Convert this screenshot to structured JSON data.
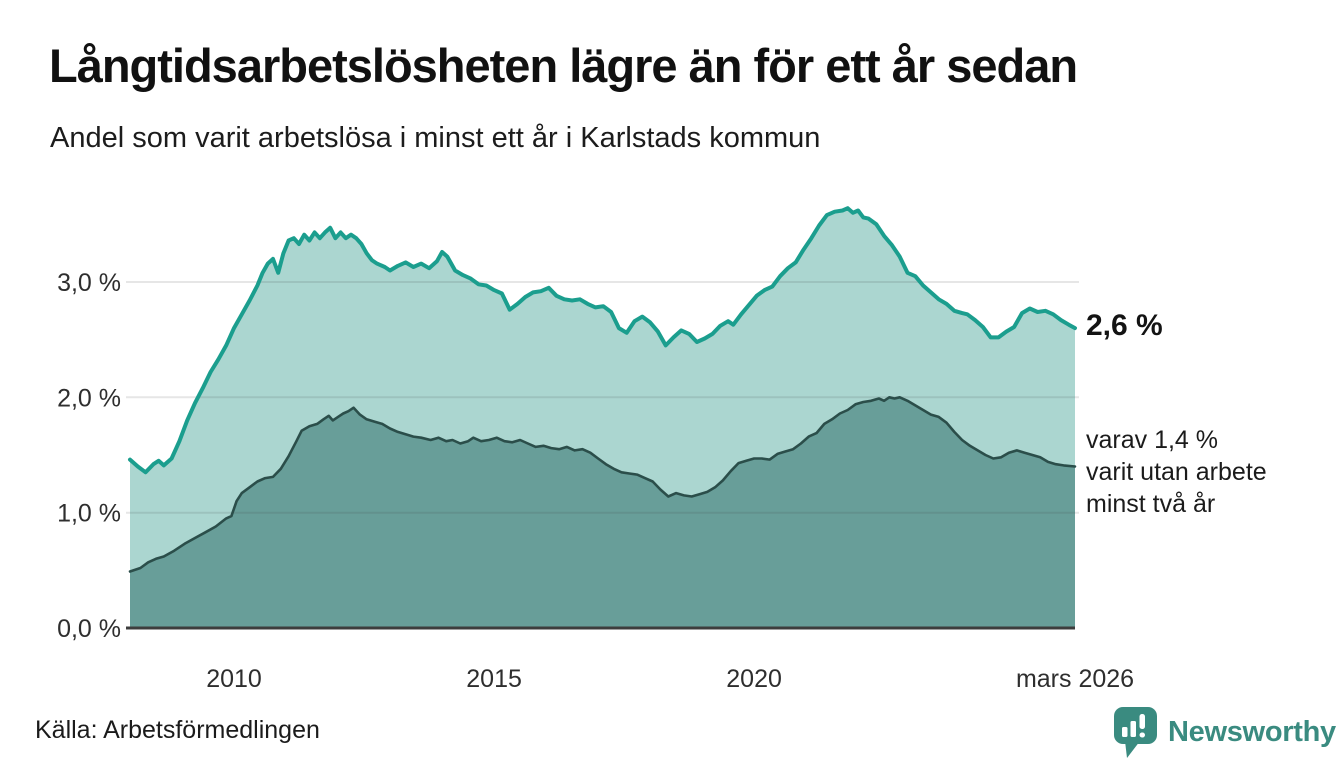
{
  "header": {
    "title": "Långtidsarbetslösheten lägre än för ett år sedan",
    "subtitle": "Andel som varit arbetslösa i minst ett år i Karlstads kommun"
  },
  "annotations": {
    "latest_total": "2,6 %",
    "secondary_lines": [
      "varav 1,4 %",
      "varit utan arbete",
      "minst två år"
    ]
  },
  "footer": {
    "source": "Källa: Arbetsförmedlingen",
    "logo_text": "Newsworthy"
  },
  "colors": {
    "line_total": "#1b9e8e",
    "fill_total": "#abd6d0",
    "line_two_years": "#2b4e4a",
    "fill_two_years": "#689e99",
    "gridline": "rgba(60,60,60,0.13)",
    "axis_line": "#3d3d3d",
    "brand_teal": "#3a8b80"
  },
  "chart_data": {
    "type": "area",
    "title": "Långtidsarbetslösheten lägre än för ett år sedan",
    "subtitle": "Andel som varit arbetslösa i minst ett år i Karlstads kommun",
    "xlabel": "",
    "ylabel": "",
    "xlim": [
      2008.0,
      2026.17
    ],
    "ylim": [
      0,
      3.8
    ],
    "grid": "horizontal",
    "legend_position": "none",
    "x_ticks": [
      {
        "v": 2010,
        "label": "2010"
      },
      {
        "v": 2015,
        "label": "2015"
      },
      {
        "v": 2020,
        "label": "2020"
      },
      {
        "v": 2026.17,
        "label": "mars 2026"
      }
    ],
    "y_ticks": [
      {
        "v": 0,
        "label": "0,0 %"
      },
      {
        "v": 1,
        "label": "1,0 %"
      },
      {
        "v": 2,
        "label": "2,0 %"
      },
      {
        "v": 3,
        "label": "3,0 %"
      }
    ],
    "series": [
      {
        "id": "minst-ett-ar",
        "name": "Andel arbetslösa minst ett år",
        "end_label": "2,6 %",
        "color": "#1b9e8e",
        "fill": "#abd6d0",
        "stroke_width": 4,
        "points": [
          [
            2008.0,
            1.46
          ],
          [
            2008.15,
            1.4
          ],
          [
            2008.3,
            1.35
          ],
          [
            2008.45,
            1.42
          ],
          [
            2008.55,
            1.45
          ],
          [
            2008.65,
            1.41
          ],
          [
            2008.8,
            1.47
          ],
          [
            2008.95,
            1.62
          ],
          [
            2009.1,
            1.8
          ],
          [
            2009.25,
            1.95
          ],
          [
            2009.4,
            2.08
          ],
          [
            2009.55,
            2.22
          ],
          [
            2009.7,
            2.33
          ],
          [
            2009.85,
            2.45
          ],
          [
            2010.0,
            2.6
          ],
          [
            2010.15,
            2.72
          ],
          [
            2010.3,
            2.84
          ],
          [
            2010.45,
            2.97
          ],
          [
            2010.55,
            3.08
          ],
          [
            2010.65,
            3.16
          ],
          [
            2010.75,
            3.2
          ],
          [
            2010.85,
            3.08
          ],
          [
            2010.95,
            3.25
          ],
          [
            2011.05,
            3.36
          ],
          [
            2011.15,
            3.38
          ],
          [
            2011.25,
            3.33
          ],
          [
            2011.35,
            3.41
          ],
          [
            2011.45,
            3.36
          ],
          [
            2011.55,
            3.43
          ],
          [
            2011.65,
            3.38
          ],
          [
            2011.75,
            3.43
          ],
          [
            2011.85,
            3.47
          ],
          [
            2011.95,
            3.38
          ],
          [
            2012.05,
            3.43
          ],
          [
            2012.15,
            3.38
          ],
          [
            2012.25,
            3.41
          ],
          [
            2012.35,
            3.38
          ],
          [
            2012.45,
            3.33
          ],
          [
            2012.55,
            3.25
          ],
          [
            2012.65,
            3.19
          ],
          [
            2012.75,
            3.16
          ],
          [
            2012.9,
            3.13
          ],
          [
            2013.0,
            3.1
          ],
          [
            2013.15,
            3.14
          ],
          [
            2013.3,
            3.17
          ],
          [
            2013.45,
            3.13
          ],
          [
            2013.6,
            3.16
          ],
          [
            2013.75,
            3.12
          ],
          [
            2013.9,
            3.18
          ],
          [
            2014.0,
            3.26
          ],
          [
            2014.1,
            3.22
          ],
          [
            2014.25,
            3.1
          ],
          [
            2014.4,
            3.06
          ],
          [
            2014.55,
            3.03
          ],
          [
            2014.7,
            2.98
          ],
          [
            2014.85,
            2.97
          ],
          [
            2015.0,
            2.93
          ],
          [
            2015.15,
            2.9
          ],
          [
            2015.3,
            2.76
          ],
          [
            2015.45,
            2.81
          ],
          [
            2015.6,
            2.87
          ],
          [
            2015.75,
            2.91
          ],
          [
            2015.9,
            2.92
          ],
          [
            2016.05,
            2.95
          ],
          [
            2016.2,
            2.88
          ],
          [
            2016.35,
            2.85
          ],
          [
            2016.5,
            2.84
          ],
          [
            2016.65,
            2.85
          ],
          [
            2016.8,
            2.81
          ],
          [
            2016.95,
            2.78
          ],
          [
            2017.1,
            2.79
          ],
          [
            2017.25,
            2.74
          ],
          [
            2017.4,
            2.6
          ],
          [
            2017.55,
            2.56
          ],
          [
            2017.7,
            2.66
          ],
          [
            2017.85,
            2.7
          ],
          [
            2018.0,
            2.65
          ],
          [
            2018.15,
            2.57
          ],
          [
            2018.3,
            2.45
          ],
          [
            2018.45,
            2.52
          ],
          [
            2018.6,
            2.58
          ],
          [
            2018.75,
            2.55
          ],
          [
            2018.9,
            2.48
          ],
          [
            2019.05,
            2.51
          ],
          [
            2019.2,
            2.55
          ],
          [
            2019.35,
            2.62
          ],
          [
            2019.5,
            2.66
          ],
          [
            2019.6,
            2.63
          ],
          [
            2019.75,
            2.72
          ],
          [
            2019.9,
            2.8
          ],
          [
            2020.05,
            2.88
          ],
          [
            2020.2,
            2.93
          ],
          [
            2020.35,
            2.96
          ],
          [
            2020.5,
            3.05
          ],
          [
            2020.65,
            3.12
          ],
          [
            2020.8,
            3.17
          ],
          [
            2020.95,
            3.28
          ],
          [
            2021.1,
            3.38
          ],
          [
            2021.25,
            3.49
          ],
          [
            2021.4,
            3.58
          ],
          [
            2021.55,
            3.61
          ],
          [
            2021.7,
            3.62
          ],
          [
            2021.8,
            3.64
          ],
          [
            2021.9,
            3.6
          ],
          [
            2022.0,
            3.62
          ],
          [
            2022.1,
            3.56
          ],
          [
            2022.2,
            3.55
          ],
          [
            2022.35,
            3.5
          ],
          [
            2022.5,
            3.4
          ],
          [
            2022.65,
            3.32
          ],
          [
            2022.8,
            3.22
          ],
          [
            2022.95,
            3.08
          ],
          [
            2023.1,
            3.05
          ],
          [
            2023.25,
            2.97
          ],
          [
            2023.4,
            2.91
          ],
          [
            2023.55,
            2.85
          ],
          [
            2023.7,
            2.81
          ],
          [
            2023.85,
            2.75
          ],
          [
            2024.0,
            2.73
          ],
          [
            2024.1,
            2.72
          ],
          [
            2024.25,
            2.67
          ],
          [
            2024.4,
            2.61
          ],
          [
            2024.55,
            2.52
          ],
          [
            2024.7,
            2.52
          ],
          [
            2024.85,
            2.57
          ],
          [
            2025.0,
            2.61
          ],
          [
            2025.15,
            2.73
          ],
          [
            2025.3,
            2.77
          ],
          [
            2025.45,
            2.74
          ],
          [
            2025.6,
            2.75
          ],
          [
            2025.75,
            2.72
          ],
          [
            2025.9,
            2.67
          ],
          [
            2026.05,
            2.63
          ],
          [
            2026.17,
            2.6
          ]
        ]
      },
      {
        "id": "minst-tva-ar",
        "name": "varav arbetslösa minst två år",
        "end_label": "varav 1,4 % varit utan arbete minst två år",
        "color": "#2b4e4a",
        "fill": "#689e99",
        "stroke_width": 2.6,
        "points": [
          [
            2008.0,
            0.49
          ],
          [
            2008.2,
            0.52
          ],
          [
            2008.35,
            0.57
          ],
          [
            2008.5,
            0.6
          ],
          [
            2008.65,
            0.62
          ],
          [
            2008.85,
            0.67
          ],
          [
            2009.05,
            0.73
          ],
          [
            2009.25,
            0.78
          ],
          [
            2009.45,
            0.83
          ],
          [
            2009.65,
            0.88
          ],
          [
            2009.85,
            0.95
          ],
          [
            2009.95,
            0.97
          ],
          [
            2010.05,
            1.1
          ],
          [
            2010.15,
            1.17
          ],
          [
            2010.3,
            1.22
          ],
          [
            2010.45,
            1.27
          ],
          [
            2010.6,
            1.3
          ],
          [
            2010.75,
            1.31
          ],
          [
            2010.9,
            1.38
          ],
          [
            2011.05,
            1.49
          ],
          [
            2011.2,
            1.62
          ],
          [
            2011.3,
            1.71
          ],
          [
            2011.45,
            1.75
          ],
          [
            2011.6,
            1.77
          ],
          [
            2011.72,
            1.81
          ],
          [
            2011.82,
            1.84
          ],
          [
            2011.9,
            1.8
          ],
          [
            2012.0,
            1.83
          ],
          [
            2012.1,
            1.86
          ],
          [
            2012.2,
            1.88
          ],
          [
            2012.3,
            1.91
          ],
          [
            2012.42,
            1.85
          ],
          [
            2012.55,
            1.81
          ],
          [
            2012.7,
            1.79
          ],
          [
            2012.85,
            1.77
          ],
          [
            2013.0,
            1.73
          ],
          [
            2013.15,
            1.7
          ],
          [
            2013.3,
            1.68
          ],
          [
            2013.45,
            1.66
          ],
          [
            2013.6,
            1.65
          ],
          [
            2013.78,
            1.63
          ],
          [
            2013.93,
            1.65
          ],
          [
            2014.08,
            1.62
          ],
          [
            2014.2,
            1.63
          ],
          [
            2014.35,
            1.6
          ],
          [
            2014.5,
            1.62
          ],
          [
            2014.6,
            1.65
          ],
          [
            2014.75,
            1.62
          ],
          [
            2014.9,
            1.63
          ],
          [
            2015.05,
            1.65
          ],
          [
            2015.2,
            1.62
          ],
          [
            2015.35,
            1.61
          ],
          [
            2015.5,
            1.63
          ],
          [
            2015.65,
            1.6
          ],
          [
            2015.8,
            1.57
          ],
          [
            2015.95,
            1.58
          ],
          [
            2016.1,
            1.56
          ],
          [
            2016.25,
            1.55
          ],
          [
            2016.4,
            1.57
          ],
          [
            2016.55,
            1.54
          ],
          [
            2016.7,
            1.55
          ],
          [
            2016.85,
            1.52
          ],
          [
            2017.0,
            1.47
          ],
          [
            2017.15,
            1.42
          ],
          [
            2017.3,
            1.38
          ],
          [
            2017.45,
            1.35
          ],
          [
            2017.6,
            1.34
          ],
          [
            2017.75,
            1.33
          ],
          [
            2017.9,
            1.3
          ],
          [
            2018.05,
            1.27
          ],
          [
            2018.2,
            1.2
          ],
          [
            2018.35,
            1.14
          ],
          [
            2018.5,
            1.17
          ],
          [
            2018.65,
            1.15
          ],
          [
            2018.8,
            1.14
          ],
          [
            2018.95,
            1.16
          ],
          [
            2019.1,
            1.18
          ],
          [
            2019.25,
            1.22
          ],
          [
            2019.4,
            1.28
          ],
          [
            2019.55,
            1.36
          ],
          [
            2019.7,
            1.43
          ],
          [
            2019.85,
            1.45
          ],
          [
            2020.0,
            1.47
          ],
          [
            2020.15,
            1.47
          ],
          [
            2020.3,
            1.46
          ],
          [
            2020.45,
            1.51
          ],
          [
            2020.6,
            1.53
          ],
          [
            2020.75,
            1.55
          ],
          [
            2020.9,
            1.6
          ],
          [
            2021.05,
            1.66
          ],
          [
            2021.2,
            1.69
          ],
          [
            2021.35,
            1.77
          ],
          [
            2021.5,
            1.81
          ],
          [
            2021.65,
            1.86
          ],
          [
            2021.8,
            1.89
          ],
          [
            2021.95,
            1.94
          ],
          [
            2022.1,
            1.96
          ],
          [
            2022.25,
            1.97
          ],
          [
            2022.4,
            1.99
          ],
          [
            2022.5,
            1.97
          ],
          [
            2022.6,
            2.0
          ],
          [
            2022.7,
            1.99
          ],
          [
            2022.8,
            2.0
          ],
          [
            2022.95,
            1.97
          ],
          [
            2023.1,
            1.93
          ],
          [
            2023.25,
            1.89
          ],
          [
            2023.4,
            1.85
          ],
          [
            2023.55,
            1.83
          ],
          [
            2023.7,
            1.78
          ],
          [
            2023.85,
            1.7
          ],
          [
            2024.0,
            1.63
          ],
          [
            2024.15,
            1.58
          ],
          [
            2024.3,
            1.54
          ],
          [
            2024.45,
            1.5
          ],
          [
            2024.6,
            1.47
          ],
          [
            2024.75,
            1.48
          ],
          [
            2024.9,
            1.52
          ],
          [
            2025.05,
            1.54
          ],
          [
            2025.2,
            1.52
          ],
          [
            2025.35,
            1.5
          ],
          [
            2025.5,
            1.48
          ],
          [
            2025.65,
            1.44
          ],
          [
            2025.8,
            1.42
          ],
          [
            2025.95,
            1.41
          ],
          [
            2026.17,
            1.4
          ]
        ]
      }
    ]
  }
}
